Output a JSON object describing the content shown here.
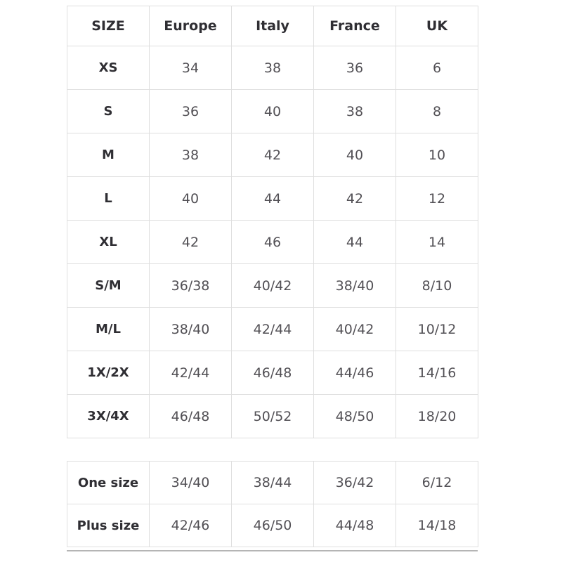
{
  "colors": {
    "background": "#ffffff",
    "border": "#dfdfdf",
    "header_text": "#2f2e33",
    "value_text": "#525055",
    "bottom_divider": "#b5b5b5"
  },
  "chart_data": [
    {
      "type": "table",
      "columns": [
        "SIZE",
        "Europe",
        "Italy",
        "France",
        "UK"
      ],
      "rows": [
        {
          "size": "XS",
          "values": [
            "34",
            "38",
            "36",
            "6"
          ]
        },
        {
          "size": "S",
          "values": [
            "36",
            "40",
            "38",
            "8"
          ]
        },
        {
          "size": "M",
          "values": [
            "38",
            "42",
            "40",
            "10"
          ]
        },
        {
          "size": "L",
          "values": [
            "40",
            "44",
            "42",
            "12"
          ]
        },
        {
          "size": "XL",
          "values": [
            "42",
            "46",
            "44",
            "14"
          ]
        },
        {
          "size": "S/M",
          "values": [
            "36/38",
            "40/42",
            "38/40",
            "8/10"
          ]
        },
        {
          "size": "M/L",
          "values": [
            "38/40",
            "42/44",
            "40/42",
            "10/12"
          ]
        },
        {
          "size": "1X/2X",
          "values": [
            "42/44",
            "46/48",
            "44/46",
            "14/16"
          ]
        },
        {
          "size": "3X/4X",
          "values": [
            "46/48",
            "50/52",
            "48/50",
            "18/20"
          ]
        }
      ]
    },
    {
      "type": "table",
      "rows": [
        {
          "size": "One size",
          "values": [
            "34/40",
            "38/44",
            "36/42",
            "6/12"
          ]
        },
        {
          "size": "Plus size",
          "values": [
            "42/46",
            "46/50",
            "44/48",
            "14/18"
          ]
        }
      ]
    }
  ]
}
